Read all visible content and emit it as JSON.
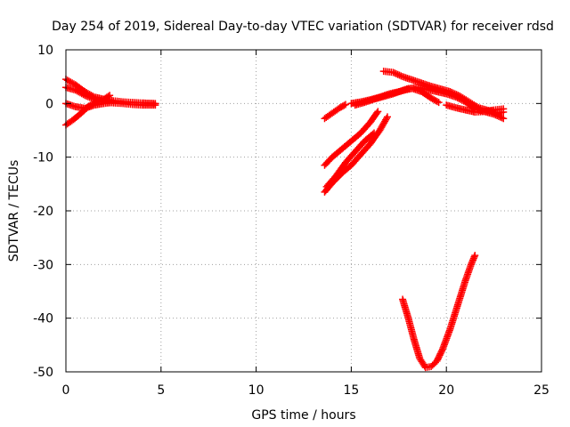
{
  "chart_data": {
    "type": "scatter",
    "title": "Day 254 of 2019, Sidereal Day-to-day VTEC variation (SDTVAR) for receiver rdsd",
    "xlabel": "GPS time / hours",
    "ylabel": "SDTVAR / TECUs",
    "xlim": [
      0,
      25
    ],
    "ylim": [
      -50,
      10
    ],
    "xticks": [
      0,
      5,
      10,
      15,
      20,
      25
    ],
    "yticks": [
      -50,
      -40,
      -30,
      -20,
      -10,
      0,
      10
    ],
    "grid": true,
    "marker": "plus",
    "color": "#ff0000",
    "series": [
      {
        "points": [
          [
            0.0,
            4.5
          ],
          [
            0.5,
            3.5
          ],
          [
            1.0,
            2.2
          ],
          [
            1.5,
            1.2
          ],
          [
            2.0,
            0.8
          ],
          [
            2.5,
            0.5
          ],
          [
            3.0,
            0.3
          ],
          [
            3.5,
            0.2
          ],
          [
            4.0,
            0.1
          ],
          [
            4.7,
            0.0
          ]
        ]
      },
      {
        "points": [
          [
            0.0,
            3.0
          ],
          [
            0.5,
            2.5
          ],
          [
            1.0,
            1.5
          ],
          [
            1.5,
            0.8
          ],
          [
            2.0,
            0.3
          ],
          [
            2.5,
            0.1
          ],
          [
            3.0,
            0.0
          ],
          [
            3.5,
            -0.2
          ],
          [
            4.0,
            -0.3
          ],
          [
            4.7,
            -0.3
          ]
        ]
      },
      {
        "points": [
          [
            0.0,
            -4.0
          ],
          [
            0.4,
            -3.0
          ],
          [
            0.8,
            -1.8
          ],
          [
            1.2,
            -0.5
          ],
          [
            1.6,
            0.3
          ],
          [
            2.0,
            0.8
          ],
          [
            2.3,
            1.5
          ]
        ]
      },
      {
        "points": [
          [
            0.0,
            0.0
          ],
          [
            0.5,
            -0.6
          ],
          [
            1.0,
            -0.9
          ],
          [
            1.5,
            -0.3
          ],
          [
            2.0,
            0.0
          ],
          [
            2.5,
            0.2
          ]
        ]
      },
      {
        "points": [
          [
            13.6,
            -2.8
          ],
          [
            14.0,
            -1.8
          ],
          [
            14.4,
            -0.8
          ],
          [
            14.7,
            -0.2
          ]
        ]
      },
      {
        "points": [
          [
            13.6,
            -11.5
          ],
          [
            14.0,
            -10.0
          ],
          [
            14.5,
            -8.5
          ],
          [
            15.0,
            -7.0
          ],
          [
            15.5,
            -5.5
          ],
          [
            16.0,
            -3.5
          ],
          [
            16.4,
            -1.5
          ]
        ]
      },
      {
        "points": [
          [
            13.6,
            -16.5
          ],
          [
            14.0,
            -14.8
          ],
          [
            14.5,
            -13.0
          ],
          [
            15.0,
            -11.5
          ],
          [
            15.5,
            -9.5
          ],
          [
            16.0,
            -7.5
          ],
          [
            16.5,
            -5.0
          ],
          [
            16.9,
            -2.5
          ]
        ]
      },
      {
        "points": [
          [
            13.7,
            -15.5
          ],
          [
            14.2,
            -13.5
          ],
          [
            14.7,
            -11.0
          ],
          [
            15.2,
            -9.0
          ],
          [
            15.7,
            -7.0
          ],
          [
            16.2,
            -5.5
          ]
        ]
      },
      {
        "points": [
          [
            15.0,
            0.0
          ],
          [
            15.5,
            0.3
          ],
          [
            16.0,
            0.7
          ],
          [
            16.5,
            1.2
          ],
          [
            17.0,
            1.8
          ],
          [
            17.5,
            2.2
          ],
          [
            18.0,
            2.8
          ],
          [
            18.5,
            3.0
          ],
          [
            19.0,
            2.6
          ],
          [
            19.5,
            2.2
          ],
          [
            20.0,
            1.8
          ],
          [
            20.5,
            1.2
          ],
          [
            21.0,
            0.3
          ],
          [
            21.5,
            -1.0
          ],
          [
            22.0,
            -1.5
          ],
          [
            22.5,
            -2.0
          ],
          [
            23.0,
            -2.8
          ]
        ]
      },
      {
        "points": [
          [
            15.2,
            -0.3
          ],
          [
            15.7,
            0.2
          ],
          [
            16.2,
            0.8
          ],
          [
            16.7,
            1.3
          ],
          [
            17.2,
            1.8
          ],
          [
            17.7,
            2.4
          ],
          [
            18.2,
            2.8
          ],
          [
            18.7,
            2.2
          ],
          [
            19.2,
            1.0
          ],
          [
            19.6,
            0.2
          ]
        ]
      },
      {
        "points": [
          [
            16.7,
            6.0
          ],
          [
            17.2,
            5.8
          ],
          [
            17.7,
            5.0
          ],
          [
            18.2,
            4.4
          ],
          [
            18.7,
            3.8
          ],
          [
            19.2,
            3.2
          ],
          [
            19.7,
            2.7
          ],
          [
            20.2,
            2.2
          ],
          [
            20.7,
            1.4
          ],
          [
            21.2,
            0.3
          ],
          [
            21.7,
            -0.8
          ],
          [
            22.2,
            -1.3
          ],
          [
            22.7,
            -1.8
          ],
          [
            23.0,
            -1.6
          ]
        ]
      },
      {
        "points": [
          [
            20.0,
            -0.3
          ],
          [
            20.5,
            -0.8
          ],
          [
            21.0,
            -1.2
          ],
          [
            21.5,
            -1.6
          ],
          [
            22.0,
            -1.5
          ],
          [
            22.5,
            -1.2
          ],
          [
            23.0,
            -1.0
          ]
        ]
      },
      {
        "points": [
          [
            17.7,
            -36.5
          ],
          [
            18.0,
            -40.0
          ],
          [
            18.3,
            -44.0
          ],
          [
            18.6,
            -47.5
          ],
          [
            18.9,
            -49.2
          ],
          [
            19.2,
            -49.0
          ],
          [
            19.5,
            -48.0
          ],
          [
            19.8,
            -45.8
          ],
          [
            20.2,
            -42.0
          ],
          [
            20.6,
            -37.5
          ],
          [
            21.0,
            -33.0
          ],
          [
            21.3,
            -30.0
          ],
          [
            21.5,
            -28.3
          ]
        ]
      }
    ]
  }
}
